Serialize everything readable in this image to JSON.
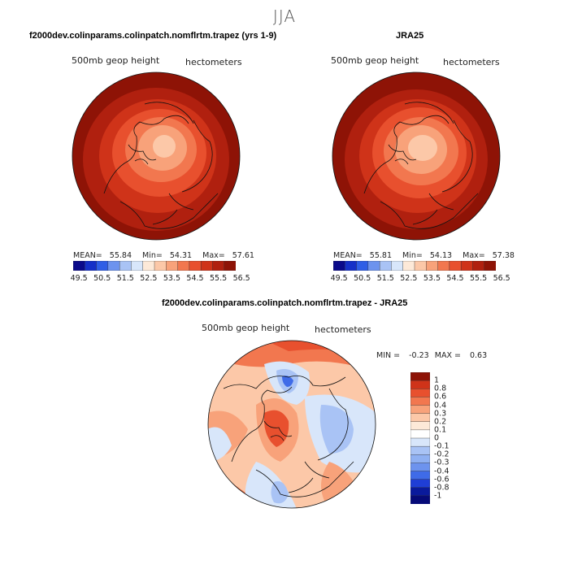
{
  "page": {
    "title": "JJA"
  },
  "chart_data": [
    {
      "type": "heatmap",
      "title": "f2000dev.colinparams.colinpatch.nomflrtm.trapez (yrs 1-9)",
      "variable_label": "500mb geop height",
      "units_label": "hectometers",
      "stats": {
        "mean_label": "MEAN=",
        "mean": "55.84",
        "min_label": "Min=",
        "min": "54.31",
        "max_label": "Max=",
        "max": "57.61"
      },
      "colorbar": {
        "colors": [
          "#0a0a8a",
          "#1530c8",
          "#2f5ee6",
          "#6d93ee",
          "#a9c3f5",
          "#d8e6fa",
          "#fde9d8",
          "#fcc8a8",
          "#f8a27a",
          "#f2774f",
          "#e8502e",
          "#cf3319",
          "#b0200f",
          "#8e1306"
        ],
        "tick_labels": [
          "49.5",
          "50.5",
          "51.5",
          "52.5",
          "53.5",
          "54.5",
          "55.5",
          "56.5"
        ]
      }
    },
    {
      "type": "heatmap",
      "title": "JRA25",
      "variable_label": "500mb geop height",
      "units_label": "hectometers",
      "stats": {
        "mean_label": "MEAN=",
        "mean": "55.81",
        "min_label": "Min=",
        "min": "54.13",
        "max_label": "Max=",
        "max": "57.38"
      },
      "colorbar": {
        "colors": [
          "#0a0a8a",
          "#1530c8",
          "#2f5ee6",
          "#6d93ee",
          "#a9c3f5",
          "#d8e6fa",
          "#fde9d8",
          "#fcc8a8",
          "#f8a27a",
          "#f2774f",
          "#e8502e",
          "#cf3319",
          "#b0200f",
          "#8e1306"
        ],
        "tick_labels": [
          "49.5",
          "50.5",
          "51.5",
          "52.5",
          "53.5",
          "54.5",
          "55.5",
          "56.5"
        ]
      }
    },
    {
      "type": "heatmap",
      "title": "f2000dev.colinparams.colinpatch.nomflrtm.trapez - JRA25",
      "variable_label": "500mb geop height",
      "units_label": "hectometers",
      "stats": {
        "min_label": "MIN =",
        "min": "-0.23",
        "max_label": "MAX =",
        "max": "0.63"
      },
      "colorbar": {
        "levels": [
          "1",
          "0.8",
          "0.6",
          "0.4",
          "0.3",
          "0.2",
          "0.1",
          "0",
          "-0.1",
          "-0.2",
          "-0.3",
          "-0.4",
          "-0.6",
          "-0.8",
          "-1"
        ],
        "colors": [
          "#8e1306",
          "#cf3319",
          "#e8502e",
          "#f2774f",
          "#f8a27a",
          "#fcc8a8",
          "#fde9d8",
          "#ffffff",
          "#d8e6fa",
          "#a9c3f5",
          "#8fb0f2",
          "#6d93ee",
          "#3f6be8",
          "#1f3ed6",
          "#0a1a9c",
          "#060a78"
        ]
      }
    }
  ]
}
